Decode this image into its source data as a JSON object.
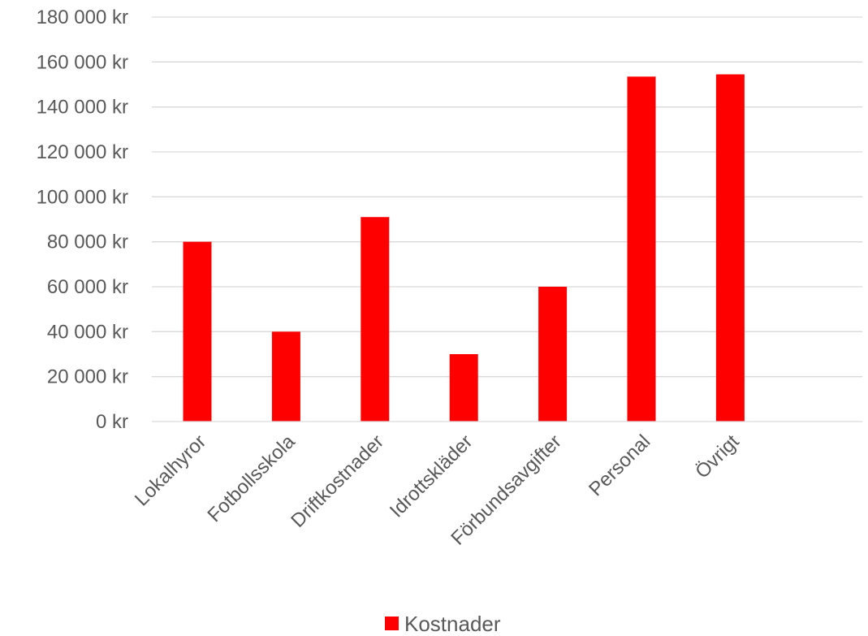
{
  "chart_data": {
    "type": "bar",
    "title": "",
    "xlabel": "",
    "ylabel": "",
    "categories": [
      "Lokalhyror",
      "Fotbollsskola",
      "Driftkostnader",
      "Idrottskläder",
      "Förbundsavgifter",
      "Personal",
      "Övrigt"
    ],
    "series": [
      {
        "name": "Kostnader",
        "color": "#ff0000",
        "values": [
          80000,
          40000,
          91000,
          30000,
          60000,
          153500,
          154500
        ]
      }
    ],
    "ylim": [
      0,
      180000
    ],
    "yticks": [
      0,
      20000,
      40000,
      60000,
      80000,
      100000,
      120000,
      140000,
      160000,
      180000
    ],
    "ytick_labels": [
      "0 kr",
      "20 000 kr",
      "40 000 kr",
      "60 000 kr",
      "80 000 kr",
      "100 000 kr",
      "120 000 kr",
      "140 000 kr",
      "160 000 kr",
      "180 000 kr"
    ],
    "grid": true,
    "legend": {
      "position": "bottom",
      "entries": [
        "Kostnader"
      ]
    }
  }
}
